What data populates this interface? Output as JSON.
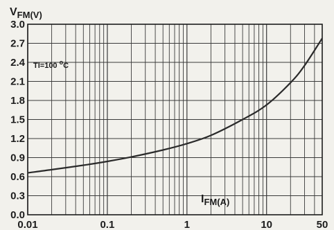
{
  "chart_data": {
    "type": "line",
    "x_scale": "log",
    "y_scale": "linear",
    "xlim": [
      0.01,
      50
    ],
    "ylim": [
      0.0,
      3.0
    ],
    "grid": true,
    "x_ticks": [
      0.01,
      0.1,
      1,
      10,
      50
    ],
    "x_tick_labels": [
      "0.01",
      "0.1",
      "1",
      "10",
      "50"
    ],
    "y_ticks": [
      0.0,
      0.3,
      0.6,
      0.9,
      1.2,
      1.5,
      1.8,
      2.1,
      2.4,
      2.7,
      3.0
    ],
    "y_tick_labels": [
      "0.0",
      "0.3",
      "0.6",
      "0.9",
      "1.2",
      "1.5",
      "1.8",
      "2.1",
      "2.4",
      "2.7",
      "3.0"
    ],
    "ylabel_main": "V",
    "ylabel_sub": "FM(V)",
    "xlabel_main": "I",
    "xlabel_sub": "FM(A)",
    "annotation": {
      "text": "Tl=100 ",
      "sup": "o",
      "unit": "C"
    },
    "series": [
      {
        "x": [
          0.01,
          0.02,
          0.05,
          0.1,
          0.2,
          0.5,
          1,
          2,
          5,
          10,
          20,
          30,
          50
        ],
        "y": [
          0.66,
          0.71,
          0.78,
          0.84,
          0.91,
          1.02,
          1.12,
          1.25,
          1.5,
          1.73,
          2.08,
          2.35,
          2.78
        ]
      }
    ],
    "colors": {
      "line": "#2a2a2a",
      "grid": "#3a3a3a",
      "background": "#f2f1ec"
    }
  }
}
